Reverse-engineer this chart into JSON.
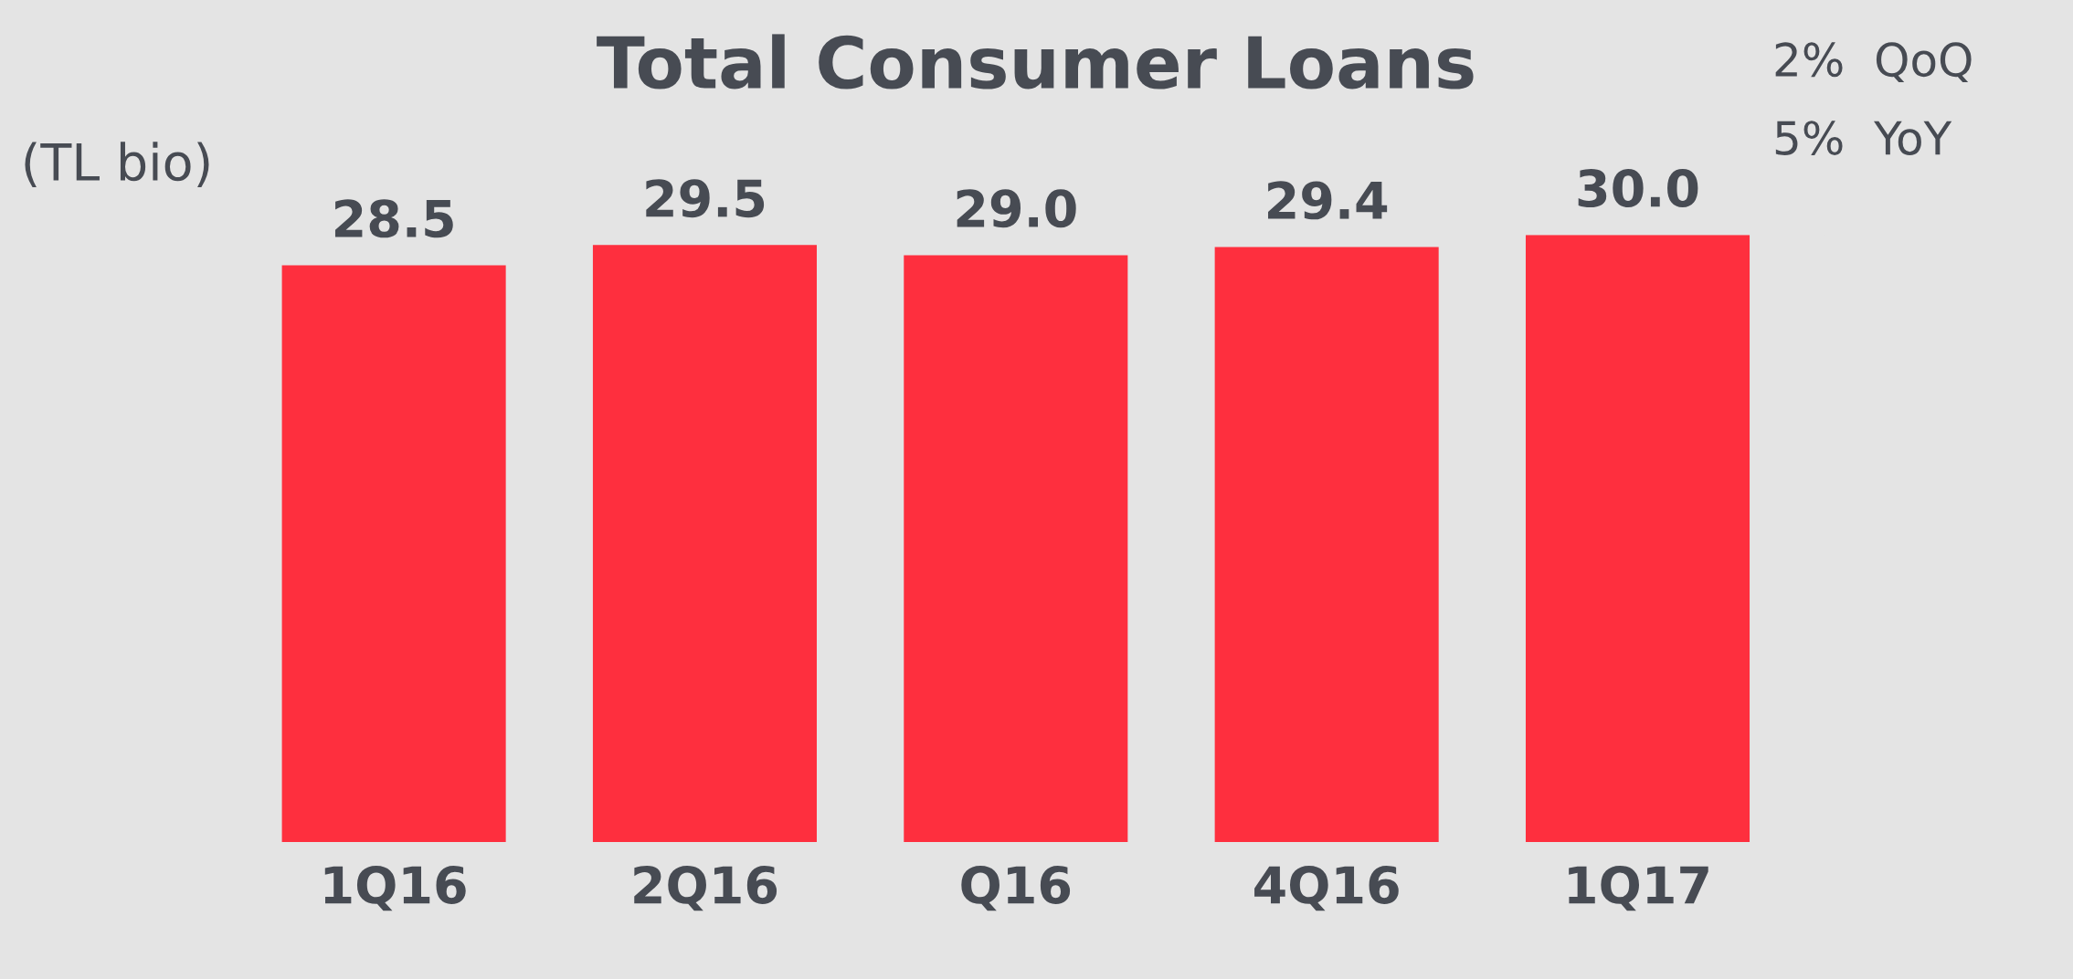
{
  "chart_data": {
    "type": "bar",
    "title": "Total Consumer Loans",
    "ylabel": "(TL bio)",
    "annotations": [
      "2%  QoQ",
      "5%  YoY"
    ],
    "categories": [
      "1Q16",
      "2Q16",
      "Q16",
      "4Q16",
      "1Q17"
    ],
    "values": [
      28.5,
      29.5,
      29.0,
      29.4,
      30.0
    ],
    "value_labels": [
      "28.5",
      "29.5",
      "29.0",
      "29.4",
      "30.0"
    ],
    "color": "#fe2f3e",
    "grid": false,
    "legend": false
  }
}
